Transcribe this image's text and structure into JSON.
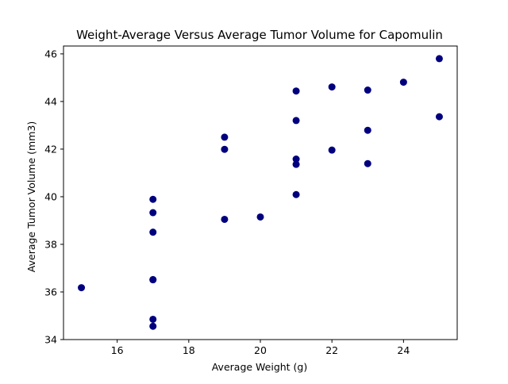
{
  "chart_data": {
    "type": "scatter",
    "title": "Weight-Average Versus Average Tumor Volume for Capomulin",
    "xlabel": "Average Weight (g)",
    "ylabel": "Average Tumor Volume (mm3)",
    "xlim": [
      14.5,
      25.5
    ],
    "ylim": [
      34,
      46.33
    ],
    "xticks": [
      16,
      18,
      20,
      22,
      24
    ],
    "yticks": [
      34,
      36,
      38,
      40,
      42,
      44,
      46
    ],
    "grid": false,
    "marker_color": "#00007f",
    "points": [
      {
        "x": 15,
        "y": 36.18
      },
      {
        "x": 17,
        "y": 34.56
      },
      {
        "x": 17,
        "y": 34.85
      },
      {
        "x": 17,
        "y": 36.51
      },
      {
        "x": 17,
        "y": 36.52
      },
      {
        "x": 17,
        "y": 38.51
      },
      {
        "x": 17,
        "y": 39.33
      },
      {
        "x": 17,
        "y": 39.89
      },
      {
        "x": 19,
        "y": 39.05
      },
      {
        "x": 19,
        "y": 41.99
      },
      {
        "x": 19,
        "y": 42.5
      },
      {
        "x": 20,
        "y": 39.15
      },
      {
        "x": 21,
        "y": 40.09
      },
      {
        "x": 21,
        "y": 41.36
      },
      {
        "x": 21,
        "y": 41.58
      },
      {
        "x": 21,
        "y": 43.2
      },
      {
        "x": 21,
        "y": 44.44
      },
      {
        "x": 22,
        "y": 41.96
      },
      {
        "x": 22,
        "y": 44.61
      },
      {
        "x": 23,
        "y": 41.39
      },
      {
        "x": 23,
        "y": 42.79
      },
      {
        "x": 23,
        "y": 44.48
      },
      {
        "x": 24,
        "y": 44.81
      },
      {
        "x": 25,
        "y": 43.36
      },
      {
        "x": 25,
        "y": 45.8
      }
    ]
  }
}
